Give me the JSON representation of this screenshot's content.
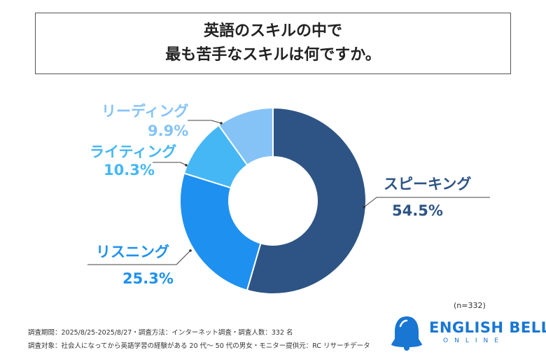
{
  "title": {
    "line1": "英語のスキルの中で",
    "line2": "最も苦手なスキルは何ですか。"
  },
  "chart_data": {
    "type": "pie",
    "donut": true,
    "slices": [
      {
        "label": "スピーキング",
        "value": 54.5,
        "value_label": "54.5%",
        "color": "#2d5484"
      },
      {
        "label": "リスニング",
        "value": 25.3,
        "value_label": "25.3%",
        "color": "#1e90f0"
      },
      {
        "label": "ライティング",
        "value": 10.3,
        "value_label": "10.3%",
        "color": "#45b7f5"
      },
      {
        "label": "リーディング",
        "value": 9.9,
        "value_label": "9.9%",
        "color": "#85c3f7"
      }
    ],
    "note": "(n=332)"
  },
  "footer": {
    "line1": "調査期間：2025/8/25-2025/8/27・調査方法：インターネット調査・調査人数：332 名",
    "line2": "調査対象：社会人になってから英語学習の経験がある 20 代〜 50 代の男女・モニター提供元：RC リサーチデータ"
  },
  "logo": {
    "name": "ENGLISH BELL",
    "sub": "ONLINE",
    "icon": "bell-icon",
    "color": "#1976d2"
  }
}
